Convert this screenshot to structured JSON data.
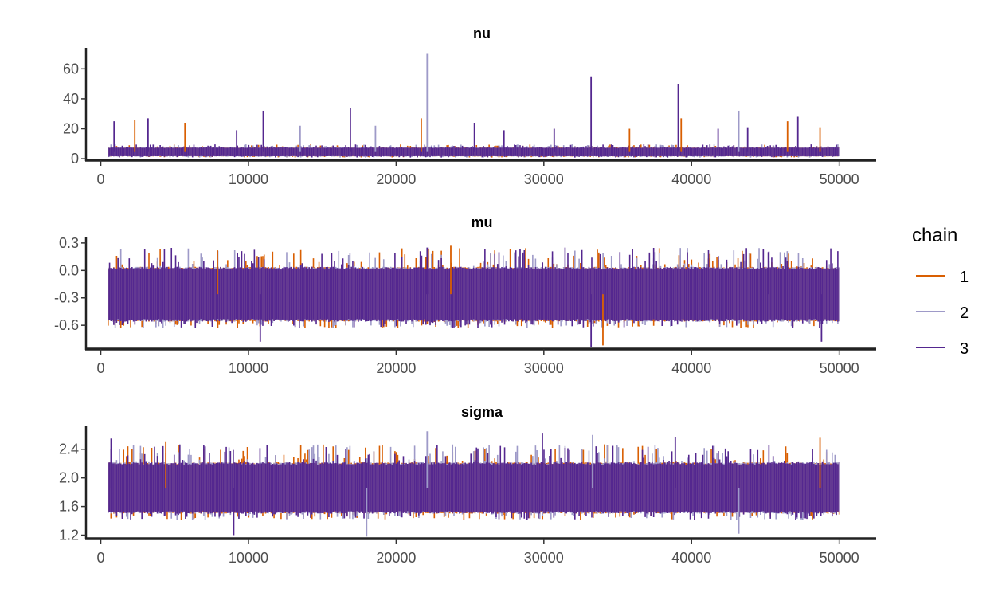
{
  "chart_data": {
    "type": "line",
    "legend": {
      "title": "chain",
      "placement": "right",
      "entries": [
        {
          "label": "1",
          "color": "#d95f02"
        },
        {
          "label": "2",
          "color": "#9e9ac8"
        },
        {
          "label": "3",
          "color": "#54278f"
        }
      ]
    },
    "grid": false,
    "iterations": {
      "start": 500,
      "end": 50000
    },
    "panels": [
      {
        "title": "nu",
        "xlim": [
          -1000,
          52500
        ],
        "ylim": [
          -1,
          74
        ],
        "xticks": [
          0,
          10000,
          20000,
          30000,
          40000,
          50000
        ],
        "xtick_labels": [
          "0",
          "10000",
          "20000",
          "30000",
          "40000",
          "50000"
        ],
        "yticks": [
          0,
          20,
          40,
          60
        ],
        "ytick_labels": [
          "0",
          "20",
          "40",
          "60"
        ],
        "band": {
          "low": 1.5,
          "high": 7.5
        },
        "spikes": [
          {
            "x": 22100,
            "y": 70,
            "chain": 2
          },
          {
            "x": 33200,
            "y": 55,
            "chain": 3
          },
          {
            "x": 39100,
            "y": 50,
            "chain": 3
          },
          {
            "x": 16900,
            "y": 34,
            "chain": 3
          },
          {
            "x": 11000,
            "y": 32,
            "chain": 3
          },
          {
            "x": 43200,
            "y": 32,
            "chain": 2
          },
          {
            "x": 3200,
            "y": 27,
            "chain": 3
          },
          {
            "x": 2300,
            "y": 26,
            "chain": 1
          },
          {
            "x": 900,
            "y": 25,
            "chain": 3
          },
          {
            "x": 5700,
            "y": 24,
            "chain": 1
          },
          {
            "x": 39300,
            "y": 27,
            "chain": 1
          },
          {
            "x": 46500,
            "y": 25,
            "chain": 1
          },
          {
            "x": 47200,
            "y": 28,
            "chain": 3
          },
          {
            "x": 21700,
            "y": 27,
            "chain": 1
          },
          {
            "x": 25300,
            "y": 24,
            "chain": 3
          },
          {
            "x": 18600,
            "y": 22,
            "chain": 2
          },
          {
            "x": 13500,
            "y": 22,
            "chain": 2
          },
          {
            "x": 43800,
            "y": 21,
            "chain": 3
          },
          {
            "x": 48700,
            "y": 21,
            "chain": 1
          },
          {
            "x": 27300,
            "y": 19,
            "chain": 3
          },
          {
            "x": 30700,
            "y": 20,
            "chain": 3
          },
          {
            "x": 35800,
            "y": 20,
            "chain": 1
          },
          {
            "x": 9200,
            "y": 19,
            "chain": 3
          },
          {
            "x": 41800,
            "y": 20,
            "chain": 3
          }
        ]
      },
      {
        "title": "mu",
        "xlim": [
          -1000,
          52500
        ],
        "ylim": [
          -0.86,
          0.36
        ],
        "xticks": [
          0,
          10000,
          20000,
          30000,
          40000,
          50000
        ],
        "xtick_labels": [
          "0",
          "10000",
          "20000",
          "30000",
          "40000",
          "50000"
        ],
        "yticks": [
          -0.6,
          -0.3,
          0.0,
          0.3
        ],
        "ytick_labels": [
          "-0.6",
          "-0.3",
          "0.0",
          "0.3"
        ],
        "band": {
          "low": -0.56,
          "high": 0.04
        },
        "spikes": [
          {
            "x": 23700,
            "y": 0.27,
            "chain": 1
          },
          {
            "x": 33200,
            "y": -0.84,
            "chain": 3
          },
          {
            "x": 34000,
            "y": -0.82,
            "chain": 1
          },
          {
            "x": 22100,
            "y": 0.25,
            "chain": 3
          },
          {
            "x": 10800,
            "y": -0.78,
            "chain": 3
          },
          {
            "x": 36000,
            "y": 0.23,
            "chain": 3
          },
          {
            "x": 7900,
            "y": 0.22,
            "chain": 1
          },
          {
            "x": 45200,
            "y": 0.2,
            "chain": 3
          },
          {
            "x": 48800,
            "y": -0.78,
            "chain": 3
          }
        ]
      },
      {
        "title": "sigma",
        "xlim": [
          -1000,
          52500
        ],
        "ylim": [
          1.15,
          2.72
        ],
        "xticks": [
          0,
          10000,
          20000,
          30000,
          40000,
          50000
        ],
        "xtick_labels": [
          "0",
          "10000",
          "20000",
          "30000",
          "40000",
          "50000"
        ],
        "yticks": [
          1.2,
          1.6,
          2.0,
          2.4
        ],
        "ytick_labels": [
          "1.2",
          "1.6",
          "2.0",
          "2.4"
        ],
        "band": {
          "low": 1.5,
          "high": 2.22
        },
        "spikes": [
          {
            "x": 22100,
            "y": 2.65,
            "chain": 2
          },
          {
            "x": 29900,
            "y": 2.63,
            "chain": 3
          },
          {
            "x": 33300,
            "y": 2.6,
            "chain": 2
          },
          {
            "x": 38900,
            "y": 2.57,
            "chain": 3
          },
          {
            "x": 48700,
            "y": 2.56,
            "chain": 1
          },
          {
            "x": 700,
            "y": 2.55,
            "chain": 3
          },
          {
            "x": 4400,
            "y": 2.5,
            "chain": 1
          },
          {
            "x": 9000,
            "y": 1.2,
            "chain": 3
          },
          {
            "x": 18000,
            "y": 1.18,
            "chain": 2
          },
          {
            "x": 43200,
            "y": 1.22,
            "chain": 2
          }
        ]
      }
    ]
  }
}
